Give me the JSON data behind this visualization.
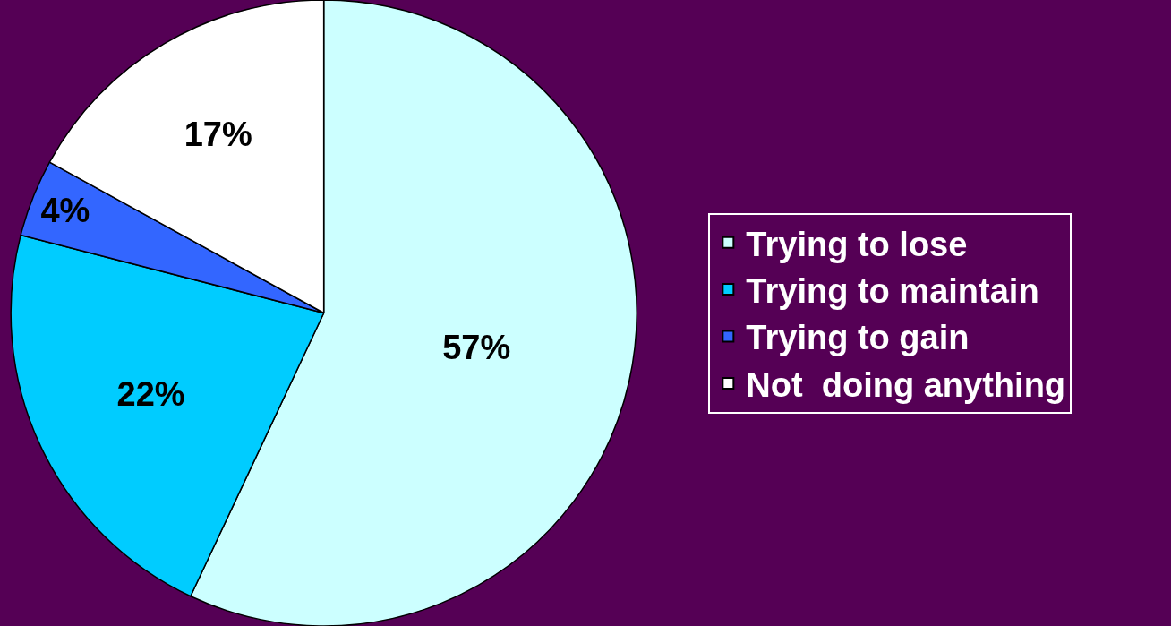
{
  "chart_data": {
    "type": "pie",
    "categories": [
      "Trying to lose",
      "Trying to maintain",
      "Trying to gain",
      "Not  doing anything"
    ],
    "values": [
      57,
      22,
      4,
      17
    ],
    "value_labels": [
      "57%",
      "22%",
      "4%",
      "17%"
    ],
    "colors": [
      "#ccffff",
      "#00ccff",
      "#3366ff",
      "#ffffff"
    ],
    "legend": "right"
  }
}
